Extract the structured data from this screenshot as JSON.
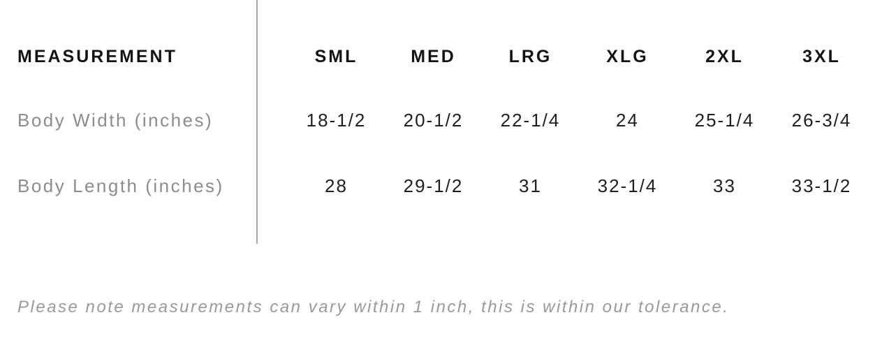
{
  "table": {
    "corner_label": "MEASUREMENT",
    "size_headers": [
      "SML",
      "MED",
      "LRG",
      "XLG",
      "2XL",
      "3XL"
    ],
    "rows": [
      {
        "label": "Body Width (inches)",
        "values": [
          "18-1/2",
          "20-1/2",
          "22-1/4",
          "24",
          "25-1/4",
          "26-3/4"
        ]
      },
      {
        "label": "Body Length (inches)",
        "values": [
          "28",
          "29-1/2",
          "31",
          "32-1/4",
          "33",
          "33-1/2"
        ]
      }
    ]
  },
  "note": "Please note measurements can vary within 1 inch, this is within our tolerance.",
  "colors": {
    "background": "#ffffff",
    "header_text": "#141414",
    "value_text": "#1f1f1f",
    "label_text": "#8c8c8c",
    "note_text": "#999999",
    "divider": "#a6a6a6"
  },
  "chart_data": {
    "type": "table",
    "columns": [
      "MEASUREMENT",
      "SML",
      "MED",
      "LRG",
      "XLG",
      "2XL",
      "3XL"
    ],
    "rows": [
      [
        "Body Width (inches)",
        "18-1/2",
        "20-1/2",
        "22-1/4",
        "24",
        "25-1/4",
        "26-3/4"
      ],
      [
        "Body Length (inches)",
        "28",
        "29-1/2",
        "31",
        "32-1/4",
        "33",
        "33-1/2"
      ]
    ],
    "footnote": "Please note measurements can vary within 1 inch, this is within our tolerance."
  }
}
